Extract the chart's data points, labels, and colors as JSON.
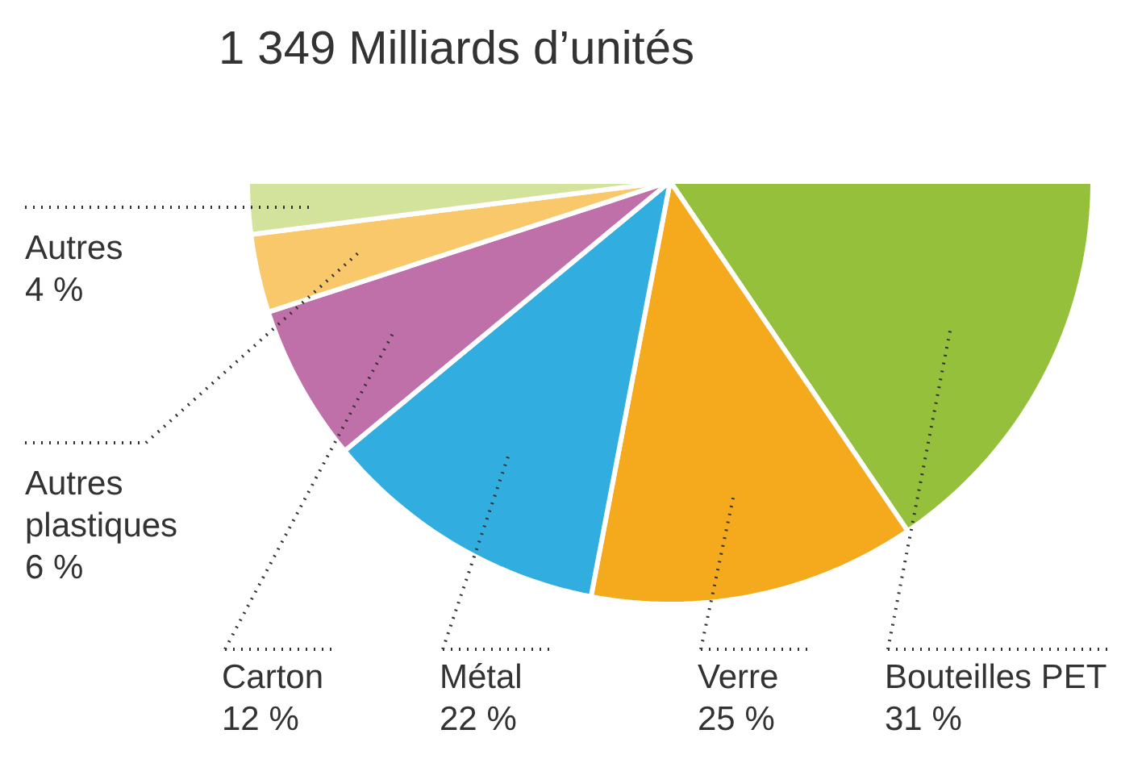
{
  "chart_data": {
    "type": "pie",
    "title": "1 349 Milliards d’unités",
    "categories": [
      "Bouteilles PET",
      "Verre",
      "Métal",
      "Carton",
      "Autres plastiques",
      "Autres"
    ],
    "values": [
      31,
      25,
      22,
      12,
      6,
      4
    ],
    "colors": [
      "#95c03c",
      "#f5aa1e",
      "#31addf",
      "#c070a8",
      "#f9c86a",
      "#d3e39c"
    ],
    "value_labels": [
      "31 %",
      "25 %",
      "22 %",
      "12 %",
      "6 %",
      "4 %"
    ]
  }
}
